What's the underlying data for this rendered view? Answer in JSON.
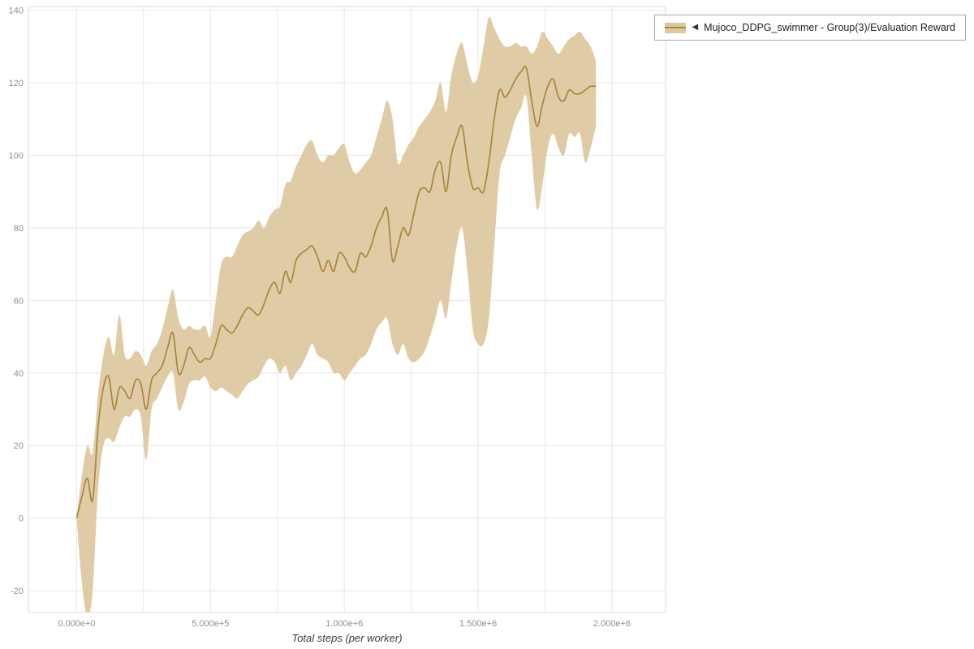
{
  "legend": {
    "collapse_icon": "◀",
    "label": "Mujoco_DDPG_swimmer - Group(3)/Evaluation Reward",
    "marker_fill": "#ddc9a1",
    "marker_line": "#a8863c"
  },
  "chart_data": {
    "type": "line",
    "title": "",
    "xlabel": "Total steps (per worker)",
    "ylabel": "",
    "grid": true,
    "legend_position": "top-right-outside",
    "line_color": "#a8863c",
    "band_color": "#ddc9a1",
    "grid_color": "#e6e6e6",
    "border_color": "#dcdcdc",
    "tick_label_color": "#8f8f8f",
    "xlim": [
      -180000,
      2200000
    ],
    "ylim": [
      -26,
      141
    ],
    "x_grid_step": 250000,
    "x_ticks": [
      {
        "value": 0,
        "label": "0.000e+0"
      },
      {
        "value": 500000,
        "label": "5.000e+5"
      },
      {
        "value": 1000000,
        "label": "1.000e+6"
      },
      {
        "value": 1500000,
        "label": "1.500e+6"
      },
      {
        "value": 2000000,
        "label": "2.000e+6"
      }
    ],
    "y_ticks": [
      -20,
      0,
      20,
      40,
      60,
      80,
      100,
      120,
      140
    ],
    "series": [
      {
        "name": "Mujoco_DDPG_swimmer - Group(3)/Evaluation Reward",
        "x": [
          0,
          20000,
          40000,
          60000,
          80000,
          100000,
          120000,
          140000,
          160000,
          180000,
          200000,
          220000,
          240000,
          260000,
          280000,
          300000,
          320000,
          340000,
          360000,
          380000,
          400000,
          420000,
          440000,
          460000,
          480000,
          500000,
          520000,
          540000,
          560000,
          580000,
          600000,
          620000,
          640000,
          660000,
          680000,
          700000,
          720000,
          740000,
          760000,
          780000,
          800000,
          820000,
          840000,
          860000,
          880000,
          900000,
          920000,
          940000,
          960000,
          980000,
          1000000,
          1020000,
          1040000,
          1060000,
          1080000,
          1100000,
          1120000,
          1140000,
          1160000,
          1180000,
          1200000,
          1220000,
          1240000,
          1260000,
          1280000,
          1300000,
          1320000,
          1340000,
          1360000,
          1380000,
          1400000,
          1420000,
          1440000,
          1460000,
          1480000,
          1500000,
          1520000,
          1540000,
          1560000,
          1580000,
          1600000,
          1620000,
          1640000,
          1660000,
          1680000,
          1700000,
          1720000,
          1740000,
          1760000,
          1780000,
          1800000,
          1820000,
          1840000,
          1860000,
          1880000,
          1900000,
          1920000,
          1940000
        ],
        "mean": [
          0,
          6,
          11,
          5,
          25,
          36,
          39,
          30,
          36,
          35,
          33,
          38,
          37,
          30,
          38,
          40,
          42,
          47,
          51,
          40,
          42,
          47,
          45,
          43,
          44,
          44,
          48,
          53,
          52,
          51,
          53,
          56,
          58,
          57,
          56,
          59,
          63,
          65,
          62,
          68,
          65,
          71,
          73,
          74,
          75,
          72,
          68,
          71,
          68,
          73,
          72,
          69,
          68,
          73,
          72,
          75,
          80,
          83,
          85,
          71,
          75,
          80,
          78,
          84,
          90,
          91,
          90,
          96,
          98,
          90,
          100,
          105,
          108,
          98,
          91,
          91,
          90,
          98,
          110,
          118,
          116,
          118,
          121,
          123,
          124,
          115,
          108,
          114,
          119,
          121,
          116,
          115,
          118,
          117,
          117,
          118,
          119,
          119
        ],
        "lower": [
          0,
          -18,
          -27,
          -20,
          8,
          20,
          22,
          21,
          25,
          28,
          28,
          30,
          28,
          16,
          30,
          33,
          36,
          39,
          40,
          30,
          32,
          37,
          38,
          38,
          39,
          36,
          35,
          36,
          35,
          34,
          33,
          35,
          37,
          38,
          39,
          42,
          44,
          43,
          40,
          42,
          38,
          40,
          42,
          45,
          48,
          45,
          44,
          43,
          40,
          40,
          38,
          40,
          42,
          44,
          45,
          48,
          52,
          54,
          55,
          48,
          45,
          48,
          44,
          43,
          44,
          46,
          50,
          55,
          60,
          55,
          65,
          75,
          80,
          68,
          52,
          48,
          48,
          55,
          75,
          95,
          100,
          105,
          110,
          113,
          116,
          100,
          85,
          92,
          102,
          106,
          102,
          100,
          106,
          105,
          106,
          98,
          102,
          108
        ],
        "upper": [
          0,
          12,
          20,
          18,
          34,
          45,
          50,
          45,
          56,
          45,
          44,
          46,
          45,
          42,
          46,
          48,
          52,
          58,
          63,
          55,
          52,
          53,
          52,
          52,
          53,
          50,
          60,
          70,
          72,
          72,
          75,
          78,
          79,
          80,
          82,
          80,
          83,
          85,
          86,
          92,
          93,
          97,
          100,
          103,
          104,
          100,
          98,
          100,
          100,
          102,
          103,
          98,
          95,
          96,
          98,
          100,
          105,
          110,
          115,
          110,
          98,
          100,
          103,
          105,
          108,
          110,
          112,
          115,
          120,
          112,
          122,
          128,
          131,
          125,
          120,
          122,
          130,
          138,
          135,
          132,
          130,
          130,
          131,
          130,
          130,
          128,
          130,
          134,
          132,
          130,
          128,
          130,
          132,
          133,
          134,
          132,
          130,
          126
        ]
      }
    ]
  }
}
